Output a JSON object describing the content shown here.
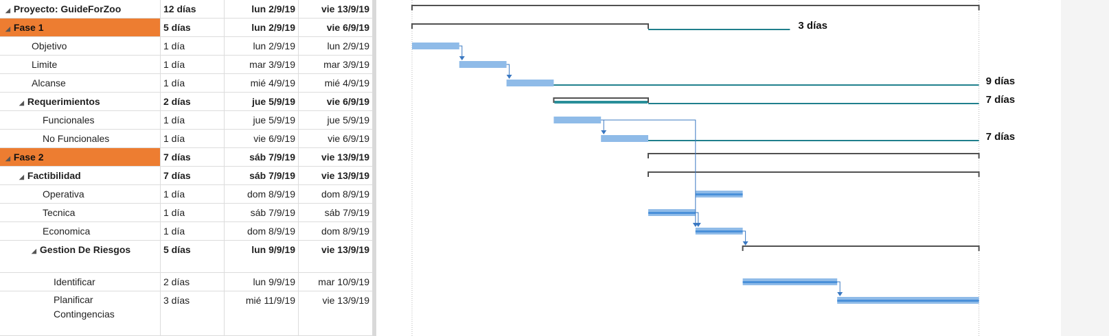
{
  "tasks": [
    {
      "name": "Proyecto: GuideForZoo",
      "duration": "12 días",
      "start": "lun 2/9/19",
      "end": "vie 13/9/19",
      "level": 0,
      "summary": true,
      "phase": false
    },
    {
      "name": "Fase 1",
      "duration": "5 días",
      "start": "lun 2/9/19",
      "end": "vie 6/9/19",
      "level": 0,
      "summary": true,
      "phase": true
    },
    {
      "name": "Objetivo",
      "duration": "1 día",
      "start": "lun 2/9/19",
      "end": "lun 2/9/19",
      "level": 2,
      "summary": false,
      "phase": false
    },
    {
      "name": "Limite",
      "duration": "1 día",
      "start": "mar 3/9/19",
      "end": "mar 3/9/19",
      "level": 2,
      "summary": false,
      "phase": false
    },
    {
      "name": "Alcanse",
      "duration": "1 día",
      "start": "mié 4/9/19",
      "end": "mié 4/9/19",
      "level": 2,
      "summary": false,
      "phase": false
    },
    {
      "name": "Requerimientos",
      "duration": "2 días",
      "start": "jue 5/9/19",
      "end": "vie 6/9/19",
      "level": 1,
      "summary": true,
      "phase": false
    },
    {
      "name": "Funcionales",
      "duration": "1 día",
      "start": "jue 5/9/19",
      "end": "jue 5/9/19",
      "level": 3,
      "summary": false,
      "phase": false
    },
    {
      "name": "No Funcionales",
      "duration": "1 día",
      "start": "vie 6/9/19",
      "end": "vie 6/9/19",
      "level": 3,
      "summary": false,
      "phase": false
    },
    {
      "name": "Fase 2",
      "duration": "7 días",
      "start": "sáb 7/9/19",
      "end": "vie 13/9/19",
      "level": 0,
      "summary": true,
      "phase": true
    },
    {
      "name": "Factibilidad",
      "duration": "7 días",
      "start": "sáb 7/9/19",
      "end": "vie 13/9/19",
      "level": 1,
      "summary": true,
      "phase": false
    },
    {
      "name": "Operativa",
      "duration": "1 día",
      "start": "dom 8/9/19",
      "end": "dom 8/9/19",
      "level": 3,
      "summary": false,
      "phase": false
    },
    {
      "name": "Tecnica",
      "duration": "1 día",
      "start": "sáb 7/9/19",
      "end": "sáb 7/9/19",
      "level": 3,
      "summary": false,
      "phase": false
    },
    {
      "name": "Economica",
      "duration": "1 día",
      "start": "dom 8/9/19",
      "end": "dom 8/9/19",
      "level": 3,
      "summary": false,
      "phase": false
    },
    {
      "name": "Gestion De Riesgos",
      "duration": "5 días",
      "start": "lun 9/9/19",
      "end": "vie 13/9/19",
      "level": 2,
      "summary": true,
      "phase": false
    },
    {
      "name": "Identificar",
      "duration": "2 días",
      "start": "lun 9/9/19",
      "end": "mar 10/9/19",
      "level": 4,
      "summary": false,
      "phase": false
    },
    {
      "name": "Planificar Contingencias",
      "duration": "3 días",
      "start": "mié 11/9/19",
      "end": "vie 13/9/19",
      "level": 4,
      "summary": false,
      "phase": false
    }
  ],
  "slack_labels": [
    "3 días",
    "9 días",
    "7 días",
    "7 días"
  ],
  "colors": {
    "phase": "#ed7d31",
    "task_bar": "#8fbbe8",
    "critical_bar": "#4a90d9",
    "summary_bar": "#505050",
    "slack_line": "#1f7f8c",
    "link": "#3a78c2"
  }
}
